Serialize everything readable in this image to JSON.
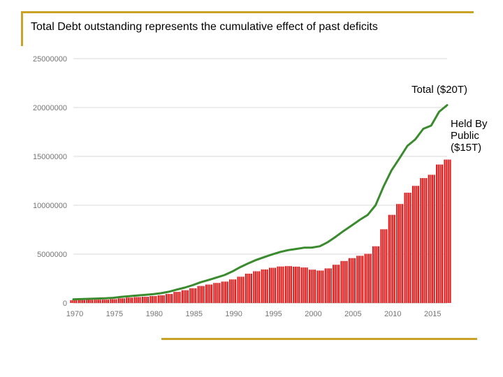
{
  "slide": {
    "title": "Total Debt outstanding represents the cumulative effect of past deficits",
    "accent_color": "#c9a227"
  },
  "annotations": {
    "total": "Total ($20T)",
    "public_lines": [
      "Held By",
      "Public",
      "($15T)"
    ]
  },
  "chart_data": {
    "type": "line",
    "title": "",
    "xlabel": "",
    "ylabel": "",
    "xlim": [
      1970,
      2017
    ],
    "ylim": [
      0,
      25000000
    ],
    "yticks": [
      "0",
      "5000000",
      "10000000",
      "15000000",
      "20000000",
      "25000000"
    ],
    "xticks": [
      "1970",
      "1975",
      "1980",
      "1985",
      "1990",
      "1995",
      "2000",
      "2005",
      "2010",
      "2015"
    ],
    "grid": true,
    "legend": "none",
    "series": [
      {
        "kind": "line",
        "color": "#3a8a2e",
        "x": [
          1970,
          1971,
          1972,
          1973,
          1974,
          1975,
          1976,
          1977,
          1978,
          1979,
          1980,
          1981,
          1982,
          1983,
          1984,
          1985,
          1986,
          1987,
          1988,
          1989,
          1990,
          1991,
          1992,
          1993,
          1994,
          1995,
          1996,
          1997,
          1998,
          1999,
          2000,
          2001,
          2002,
          2003,
          2004,
          2005,
          2006,
          2007,
          2008,
          2009,
          2010,
          2011,
          2012,
          2013,
          2014,
          2015,
          2016,
          2017
        ],
        "y": [
          370000,
          400000,
          430000,
          460000,
          480000,
          530000,
          620000,
          700000,
          770000,
          830000,
          900000,
          1000000,
          1150000,
          1370000,
          1570000,
          1820000,
          2120000,
          2350000,
          2600000,
          2860000,
          3230000,
          3670000,
          4060000,
          4410000,
          4690000,
          4970000,
          5220000,
          5410000,
          5530000,
          5660000,
          5670000,
          5810000,
          6230000,
          6780000,
          7380000,
          7930000,
          8500000,
          9010000,
          10000000,
          11900000,
          13560000,
          14790000,
          16070000,
          16740000,
          17820000,
          18150000,
          19570000,
          20240000
        ]
      },
      {
        "kind": "bar",
        "color": "#e02020",
        "x": [
          1970,
          1971,
          1972,
          1973,
          1974,
          1975,
          1976,
          1977,
          1978,
          1979,
          1980,
          1981,
          1982,
          1983,
          1984,
          1985,
          1986,
          1987,
          1988,
          1989,
          1990,
          1991,
          1992,
          1993,
          1994,
          1995,
          1996,
          1997,
          1998,
          1999,
          2000,
          2001,
          2002,
          2003,
          2004,
          2005,
          2006,
          2007,
          2008,
          2009,
          2010,
          2011,
          2012,
          2013,
          2014,
          2015,
          2016,
          2017
        ],
        "y": [
          283000,
          303000,
          322000,
          341000,
          344000,
          395000,
          477000,
          549000,
          607000,
          640000,
          712000,
          789000,
          925000,
          1137000,
          1307000,
          1507000,
          1741000,
          1890000,
          2051000,
          2191000,
          2412000,
          2690000,
          3001000,
          3248000,
          3433000,
          3604000,
          3734000,
          3772000,
          3721000,
          3632000,
          3410000,
          3320000,
          3540000,
          3913000,
          4296000,
          4592000,
          4829000,
          5035000,
          5803000,
          7545000,
          9019000,
          10128000,
          11281000,
          11983000,
          12779000,
          13117000,
          14168000,
          14673000
        ]
      }
    ]
  }
}
